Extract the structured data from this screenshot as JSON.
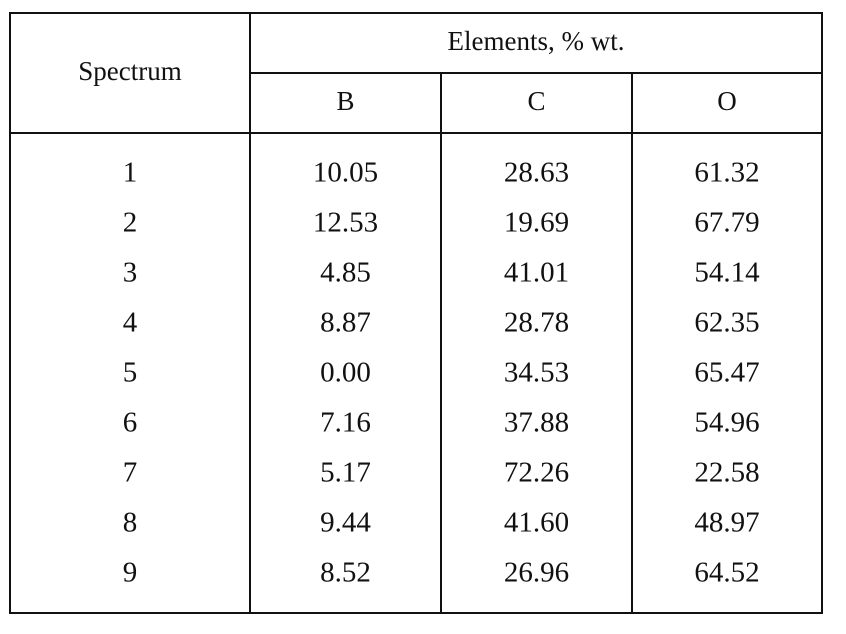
{
  "header": {
    "row_label": "Spectrum",
    "group": "Elements, % wt.",
    "columns": [
      "B",
      "C",
      "O"
    ]
  },
  "table": {
    "rows": [
      [
        "1",
        "10.05",
        "28.63",
        "61.32"
      ],
      [
        "2",
        "12.53",
        "19.69",
        "67.79"
      ],
      [
        "3",
        "4.85",
        "41.01",
        "54.14"
      ],
      [
        "4",
        "8.87",
        "28.78",
        "62.35"
      ],
      [
        "5",
        "0.00",
        "34.53",
        "65.47"
      ],
      [
        "6",
        "7.16",
        "37.88",
        "54.96"
      ],
      [
        "7",
        "5.17",
        "72.26",
        "22.58"
      ],
      [
        "8",
        "9.44",
        "41.60",
        "48.97"
      ],
      [
        "9",
        "8.52",
        "26.96",
        "64.52"
      ]
    ]
  }
}
